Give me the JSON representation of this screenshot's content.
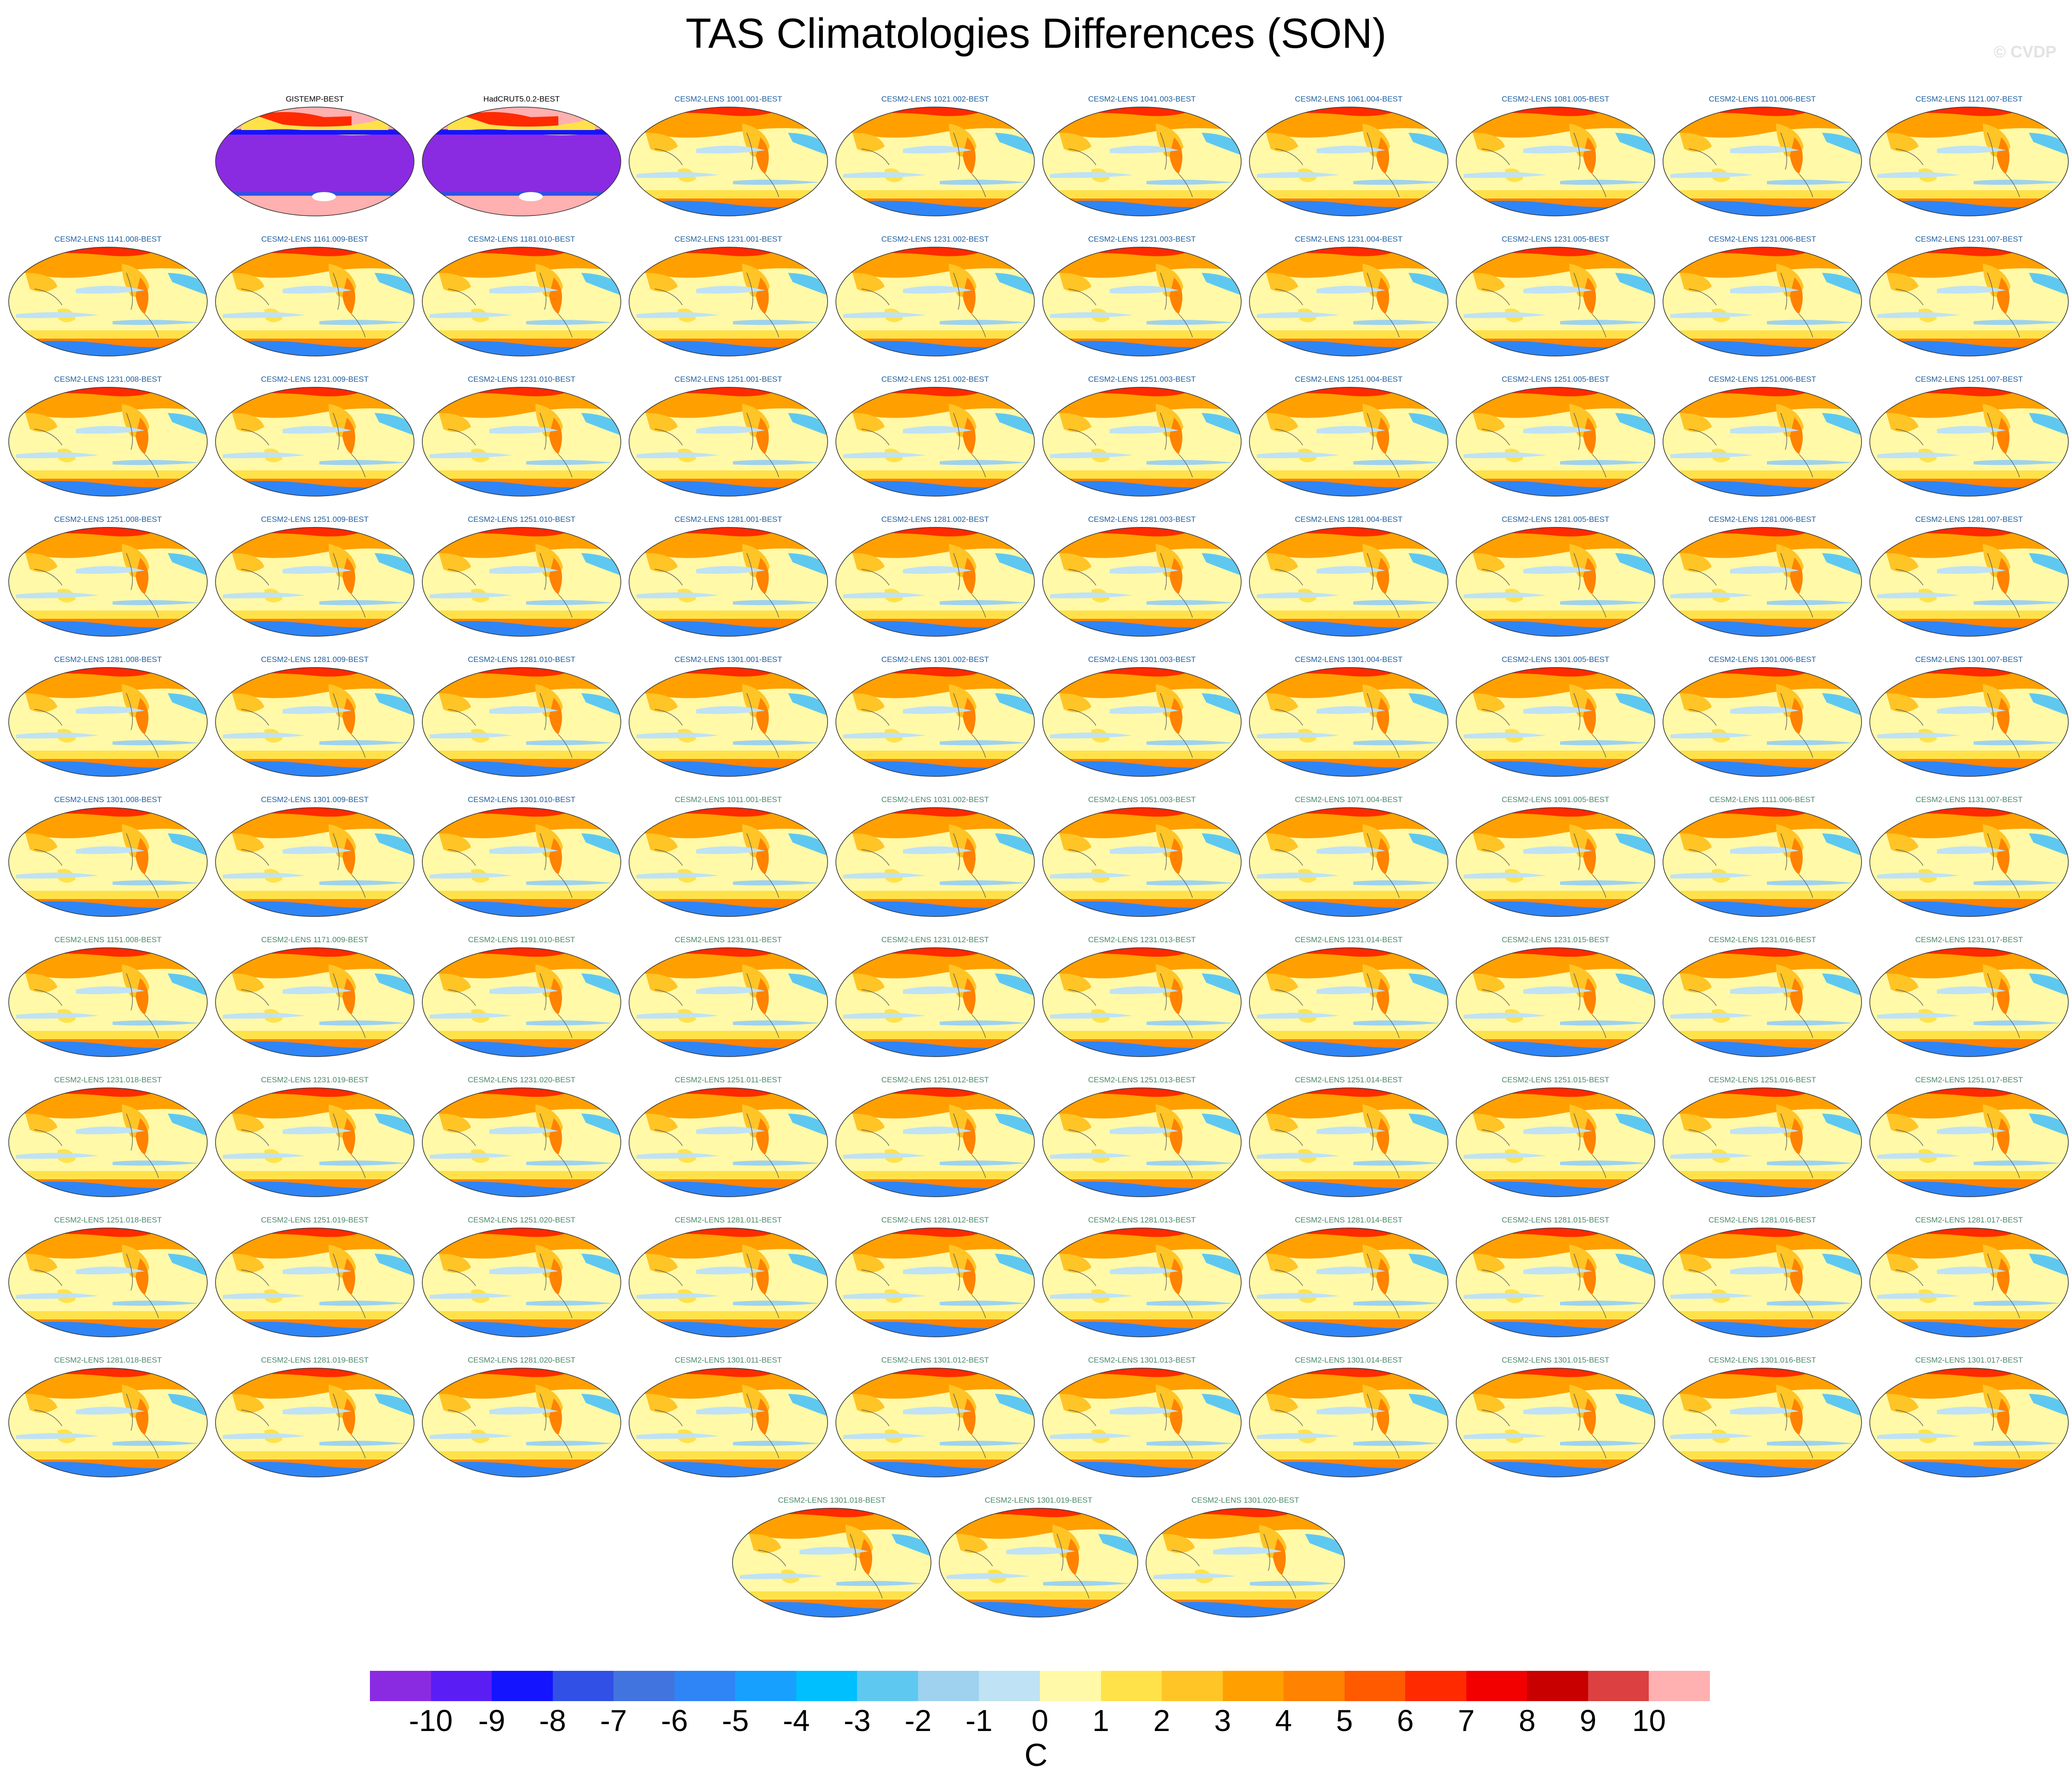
{
  "title": "TAS Climatologies Differences (SON)",
  "watermark": "© CVDP",
  "colorbar": {
    "unit": "C",
    "tick_labels": [
      "-10",
      "-9",
      "-8",
      "-7",
      "-6",
      "-5",
      "-4",
      "-3",
      "-2",
      "-1",
      "0",
      "1",
      "2",
      "3",
      "4",
      "5",
      "6",
      "7",
      "8",
      "9",
      "10"
    ],
    "colors": [
      "#8a2be2",
      "#5a1ef5",
      "#1414ff",
      "#3050e6",
      "#4274e0",
      "#2f85f5",
      "#18a0ff",
      "#00bfff",
      "#5fc8f0",
      "#9ed2ee",
      "#bfe2f4",
      "#fff9a8",
      "#ffe24a",
      "#ffc426",
      "#ffa000",
      "#ff8200",
      "#ff5a00",
      "#ff2a00",
      "#f20000",
      "#c80000",
      "#dc4040",
      "#ffb0b0"
    ]
  },
  "observation_panels": [
    {
      "label": "GISTEMP-BEST"
    },
    {
      "label": "HadCRUT5.0.2-BEST"
    }
  ],
  "model_panels": [
    "CESM2-LENS 1001.001-BEST",
    "CESM2-LENS 1021.002-BEST",
    "CESM2-LENS 1041.003-BEST",
    "CESM2-LENS 1061.004-BEST",
    "CESM2-LENS 1081.005-BEST",
    "CESM2-LENS 1101.006-BEST",
    "CESM2-LENS 1121.007-BEST",
    "CESM2-LENS 1141.008-BEST",
    "CESM2-LENS 1161.009-BEST",
    "CESM2-LENS 1181.010-BEST",
    "CESM2-LENS 1231.001-BEST",
    "CESM2-LENS 1231.002-BEST",
    "CESM2-LENS 1231.003-BEST",
    "CESM2-LENS 1231.004-BEST",
    "CESM2-LENS 1231.005-BEST",
    "CESM2-LENS 1231.006-BEST",
    "CESM2-LENS 1231.007-BEST",
    "CESM2-LENS 1231.008-BEST",
    "CESM2-LENS 1231.009-BEST",
    "CESM2-LENS 1231.010-BEST",
    "CESM2-LENS 1251.001-BEST",
    "CESM2-LENS 1251.002-BEST",
    "CESM2-LENS 1251.003-BEST",
    "CESM2-LENS 1251.004-BEST",
    "CESM2-LENS 1251.005-BEST",
    "CESM2-LENS 1251.006-BEST",
    "CESM2-LENS 1251.007-BEST",
    "CESM2-LENS 1251.008-BEST",
    "CESM2-LENS 1251.009-BEST",
    "CESM2-LENS 1251.010-BEST",
    "CESM2-LENS 1281.001-BEST",
    "CESM2-LENS 1281.002-BEST",
    "CESM2-LENS 1281.003-BEST",
    "CESM2-LENS 1281.004-BEST",
    "CESM2-LENS 1281.005-BEST",
    "CESM2-LENS 1281.006-BEST",
    "CESM2-LENS 1281.007-BEST",
    "CESM2-LENS 1281.008-BEST",
    "CESM2-LENS 1281.009-BEST",
    "CESM2-LENS 1281.010-BEST",
    "CESM2-LENS 1301.001-BEST",
    "CESM2-LENS 1301.002-BEST",
    "CESM2-LENS 1301.003-BEST",
    "CESM2-LENS 1301.004-BEST",
    "CESM2-LENS 1301.005-BEST",
    "CESM2-LENS 1301.006-BEST",
    "CESM2-LENS 1301.007-BEST",
    "CESM2-LENS 1301.008-BEST",
    "CESM2-LENS 1301.009-BEST",
    "CESM2-LENS 1301.010-BEST",
    "CESM2-LENS 1011.001-BEST",
    "CESM2-LENS 1031.002-BEST",
    "CESM2-LENS 1051.003-BEST",
    "CESM2-LENS 1071.004-BEST",
    "CESM2-LENS 1091.005-BEST",
    "CESM2-LENS 1111.006-BEST",
    "CESM2-LENS 1131.007-BEST",
    "CESM2-LENS 1151.008-BEST",
    "CESM2-LENS 1171.009-BEST",
    "CESM2-LENS 1191.010-BEST",
    "CESM2-LENS 1231.011-BEST",
    "CESM2-LENS 1231.012-BEST",
    "CESM2-LENS 1231.013-BEST",
    "CESM2-LENS 1231.014-BEST",
    "CESM2-LENS 1231.015-BEST",
    "CESM2-LENS 1231.016-BEST",
    "CESM2-LENS 1231.017-BEST",
    "CESM2-LENS 1231.018-BEST",
    "CESM2-LENS 1231.019-BEST",
    "CESM2-LENS 1231.020-BEST",
    "CESM2-LENS 1251.011-BEST",
    "CESM2-LENS 1251.012-BEST",
    "CESM2-LENS 1251.013-BEST",
    "CESM2-LENS 1251.014-BEST",
    "CESM2-LENS 1251.015-BEST",
    "CESM2-LENS 1251.016-BEST",
    "CESM2-LENS 1251.017-BEST",
    "CESM2-LENS 1251.018-BEST",
    "CESM2-LENS 1251.019-BEST",
    "CESM2-LENS 1251.020-BEST",
    "CESM2-LENS 1281.011-BEST",
    "CESM2-LENS 1281.012-BEST",
    "CESM2-LENS 1281.013-BEST",
    "CESM2-LENS 1281.014-BEST",
    "CESM2-LENS 1281.015-BEST",
    "CESM2-LENS 1281.016-BEST",
    "CESM2-LENS 1281.017-BEST",
    "CESM2-LENS 1281.018-BEST",
    "CESM2-LENS 1281.019-BEST",
    "CESM2-LENS 1281.020-BEST",
    "CESM2-LENS 1301.011-BEST",
    "CESM2-LENS 1301.012-BEST",
    "CESM2-LENS 1301.013-BEST",
    "CESM2-LENS 1301.014-BEST",
    "CESM2-LENS 1301.015-BEST",
    "CESM2-LENS 1301.016-BEST",
    "CESM2-LENS 1301.017-BEST",
    "CESM2-LENS 1301.018-BEST",
    "CESM2-LENS 1301.019-BEST",
    "CESM2-LENS 1301.020-BEST"
  ],
  "panel_title_colors": {
    "observation": "#000000",
    "model_first_set": "#1f5fa0",
    "model_second_set": "#4a8a6a"
  }
}
